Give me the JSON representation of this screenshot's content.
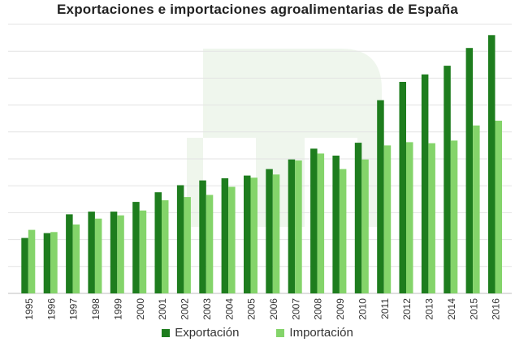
{
  "chart_data": {
    "type": "bar",
    "title": "Exportaciones e importaciones agroalimentarias de España",
    "xlabel": "",
    "ylabel": "",
    "ylim": [
      0,
      50
    ],
    "grid": true,
    "legend_position": "bottom",
    "categories": [
      "1995",
      "1996",
      "1997",
      "1998",
      "1999",
      "2000",
      "2001",
      "2002",
      "2003",
      "2004",
      "2005",
      "2006",
      "2007",
      "2008",
      "2009",
      "2010",
      "2011",
      "2012",
      "2013",
      "2014",
      "2015",
      "2016"
    ],
    "series": [
      {
        "name": "Exportación",
        "color": "#1e7d1e",
        "values": [
          10.3,
          11.2,
          14.7,
          15.2,
          15.2,
          17.0,
          18.8,
          20.1,
          21.0,
          21.4,
          21.9,
          23.1,
          24.9,
          26.9,
          25.6,
          28.0,
          35.9,
          39.3,
          40.7,
          42.3,
          45.6,
          48.0
        ]
      },
      {
        "name": "Importación",
        "color": "#84d46a",
        "values": [
          11.8,
          11.4,
          12.8,
          13.9,
          14.5,
          15.4,
          17.3,
          17.9,
          18.3,
          19.8,
          21.5,
          22.1,
          24.7,
          26.0,
          23.1,
          24.9,
          27.5,
          28.1,
          27.9,
          28.4,
          31.2,
          32.1
        ]
      }
    ]
  }
}
